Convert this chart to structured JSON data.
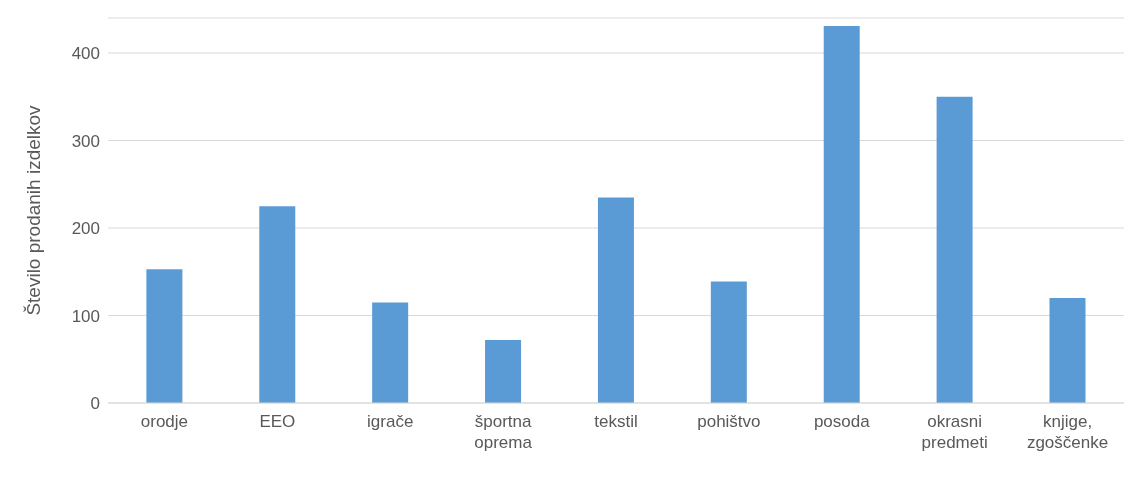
{
  "chart_data": {
    "type": "bar",
    "ylabel": "Število prodanih izdelkov",
    "categories": [
      "orodje",
      "EEO",
      "igrače",
      "športna oprema",
      "tekstil",
      "pohištvo",
      "posoda",
      "okrasni predmeti",
      "knjige, zgoščenke"
    ],
    "values": [
      153,
      225,
      115,
      72,
      235,
      139,
      431,
      350,
      120
    ],
    "color": "#5b9bd5",
    "ylim": [
      0,
      440
    ],
    "yticks": [
      0,
      100,
      200,
      300,
      400
    ],
    "grid": "y"
  }
}
